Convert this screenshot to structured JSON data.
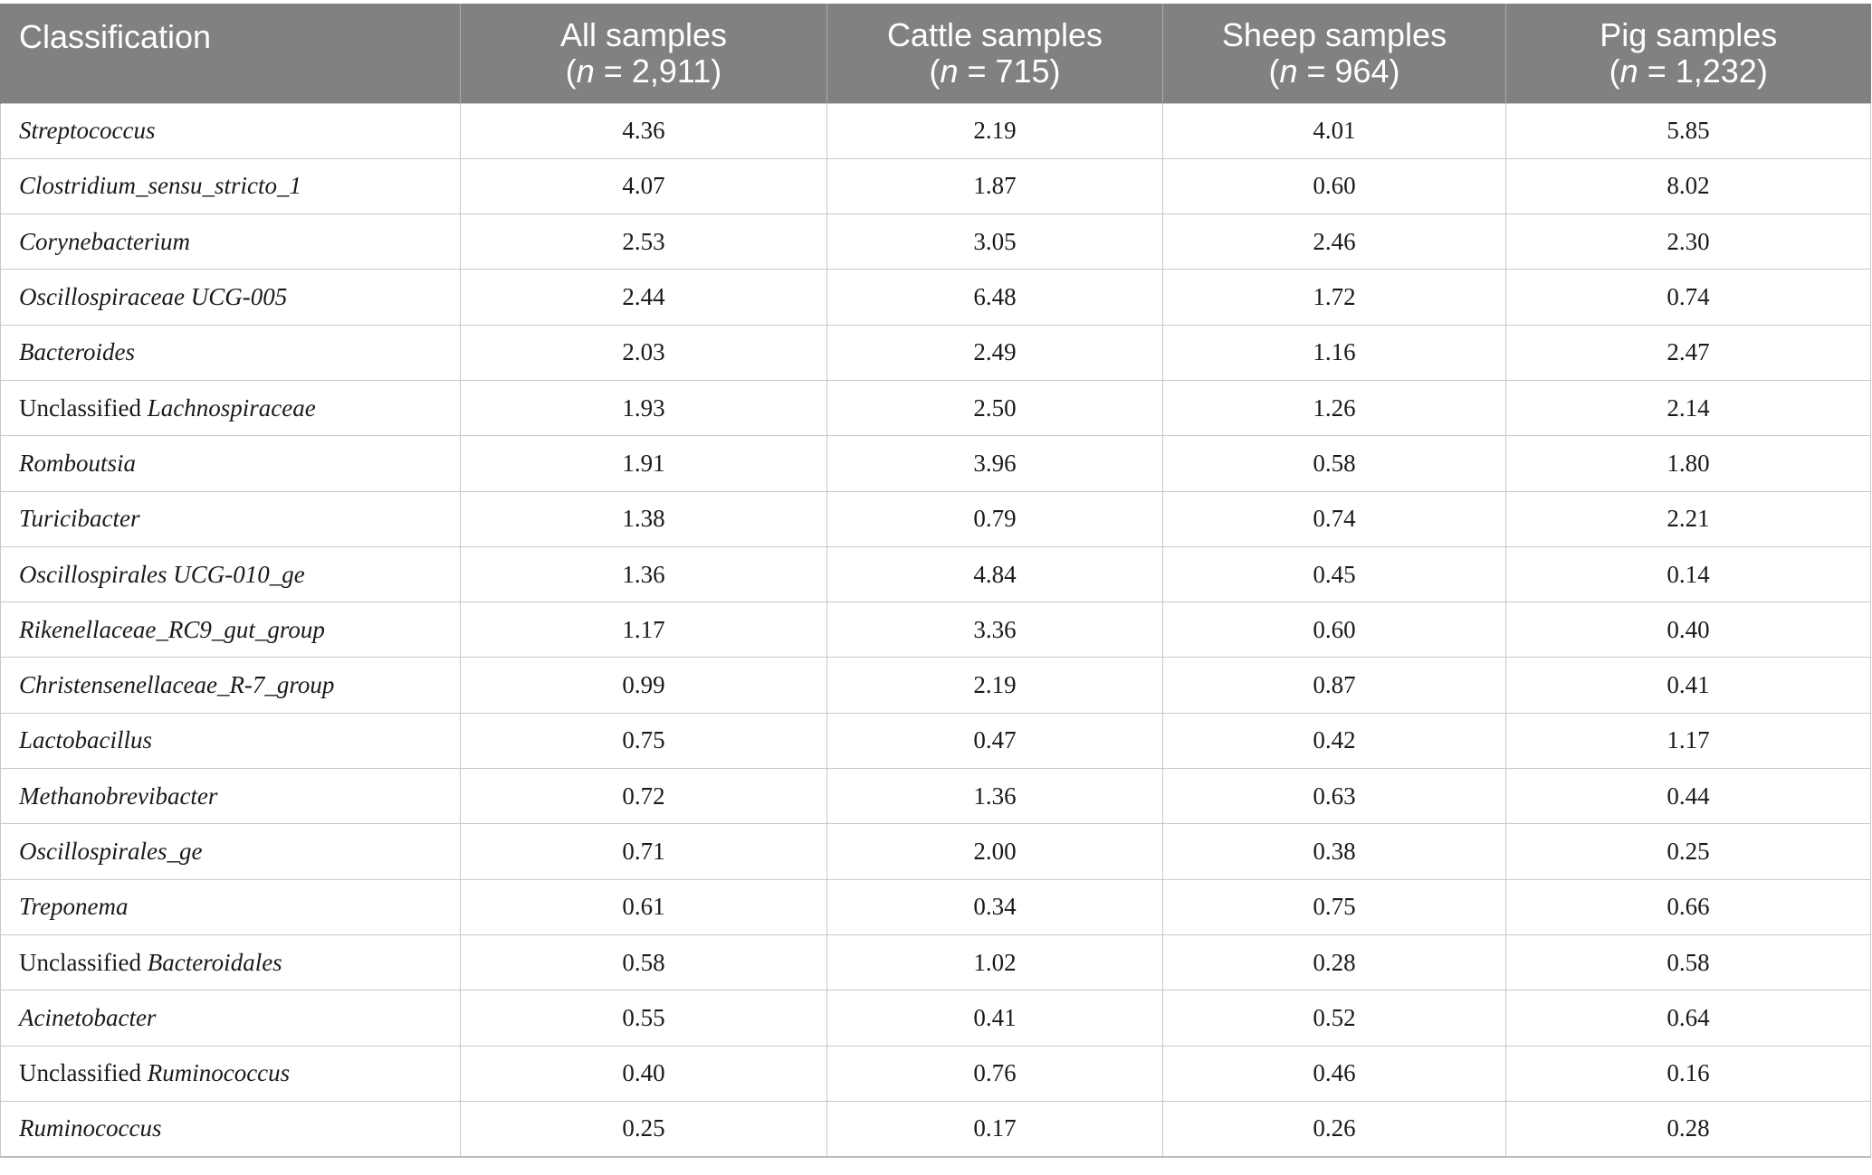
{
  "table": {
    "headers": [
      {
        "label": "Classification"
      },
      {
        "label": "All samples",
        "n_prefix": "(",
        "n_var": "n",
        "n_value": " = 2,911)"
      },
      {
        "label": "Cattle samples",
        "n_prefix": "(",
        "n_var": "n",
        "n_value": " = 715)"
      },
      {
        "label": "Sheep samples",
        "n_prefix": "(",
        "n_var": "n",
        "n_value": " = 964)"
      },
      {
        "label": "Pig samples",
        "n_prefix": "(",
        "n_var": "n",
        "n_value": " = 1,232)"
      }
    ],
    "rows": [
      {
        "prefix": "",
        "genus": "Streptococcus",
        "values": [
          "4.36",
          "2.19",
          "4.01",
          "5.85"
        ]
      },
      {
        "prefix": "",
        "genus": "Clostridium_sensu_stricto_1",
        "values": [
          "4.07",
          "1.87",
          "0.60",
          "8.02"
        ]
      },
      {
        "prefix": "",
        "genus": "Corynebacterium",
        "values": [
          "2.53",
          "3.05",
          "2.46",
          "2.30"
        ]
      },
      {
        "prefix": "",
        "genus": "Oscillospiraceae UCG-005",
        "values": [
          "2.44",
          "6.48",
          "1.72",
          "0.74"
        ]
      },
      {
        "prefix": "",
        "genus": "Bacteroides",
        "values": [
          "2.03",
          "2.49",
          "1.16",
          "2.47"
        ]
      },
      {
        "prefix": "Unclassified ",
        "genus": "Lachnospiraceae",
        "values": [
          "1.93",
          "2.50",
          "1.26",
          "2.14"
        ]
      },
      {
        "prefix": "",
        "genus": "Romboutsia",
        "values": [
          "1.91",
          "3.96",
          "0.58",
          "1.80"
        ]
      },
      {
        "prefix": "",
        "genus": "Turicibacter",
        "values": [
          "1.38",
          "0.79",
          "0.74",
          "2.21"
        ]
      },
      {
        "prefix": "",
        "genus": "Oscillospirales UCG-010_ge",
        "values": [
          "1.36",
          "4.84",
          "0.45",
          "0.14"
        ]
      },
      {
        "prefix": "",
        "genus": "Rikenellaceae_RC9_gut_group",
        "values": [
          "1.17",
          "3.36",
          "0.60",
          "0.40"
        ]
      },
      {
        "prefix": "",
        "genus": "Christensenellaceae_R-7_group",
        "values": [
          "0.99",
          "2.19",
          "0.87",
          "0.41"
        ]
      },
      {
        "prefix": "",
        "genus": "Lactobacillus",
        "values": [
          "0.75",
          "0.47",
          "0.42",
          "1.17"
        ]
      },
      {
        "prefix": "",
        "genus": "Methanobrevibacter",
        "values": [
          "0.72",
          "1.36",
          "0.63",
          "0.44"
        ]
      },
      {
        "prefix": "",
        "genus": "Oscillospirales_ge",
        "values": [
          "0.71",
          "2.00",
          "0.38",
          "0.25"
        ]
      },
      {
        "prefix": "",
        "genus": "Treponema",
        "values": [
          "0.61",
          "0.34",
          "0.75",
          "0.66"
        ]
      },
      {
        "prefix": "Unclassified ",
        "genus": "Bacteroidales",
        "values": [
          "0.58",
          "1.02",
          "0.28",
          "0.58"
        ]
      },
      {
        "prefix": "",
        "genus": "Acinetobacter",
        "values": [
          "0.55",
          "0.41",
          "0.52",
          "0.64"
        ]
      },
      {
        "prefix": "Unclassified ",
        "genus": "Ruminococcus",
        "values": [
          "0.40",
          "0.76",
          "0.46",
          "0.16"
        ]
      },
      {
        "prefix": "",
        "genus": "Ruminococcus",
        "values": [
          "0.25",
          "0.17",
          "0.26",
          "0.28"
        ]
      }
    ]
  },
  "colors": {
    "header_background": "#7f8281",
    "header_text": "#ffffff",
    "grid_line": "#c9c9c9"
  }
}
